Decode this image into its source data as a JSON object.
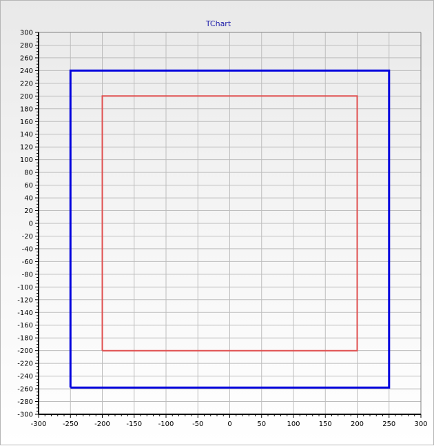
{
  "chart_data": {
    "type": "line",
    "title": "TChart",
    "xlabel": "",
    "ylabel": "",
    "xlim": [
      -300,
      300
    ],
    "ylim": [
      -300,
      300
    ],
    "x_tick_step": 50,
    "y_tick_step": 20,
    "minor_ticks_per_major_x": 5,
    "minor_ticks_per_major_y": 4,
    "grid": true,
    "legend": "none",
    "series": [
      {
        "color": "#0000dd",
        "points": [
          [
            -250,
            -258
          ],
          [
            -250,
            240
          ],
          [
            250,
            240
          ],
          [
            250,
            -258
          ],
          [
            -250,
            -258
          ]
        ]
      },
      {
        "color": "#e05050",
        "points": [
          [
            -200,
            -200
          ],
          [
            -200,
            200
          ],
          [
            200,
            200
          ],
          [
            200,
            -200
          ],
          [
            -200,
            -200
          ]
        ]
      }
    ]
  },
  "colors": {
    "title": "#1a1aa8",
    "grid": "#bdbdbd",
    "axis": "#000000"
  }
}
